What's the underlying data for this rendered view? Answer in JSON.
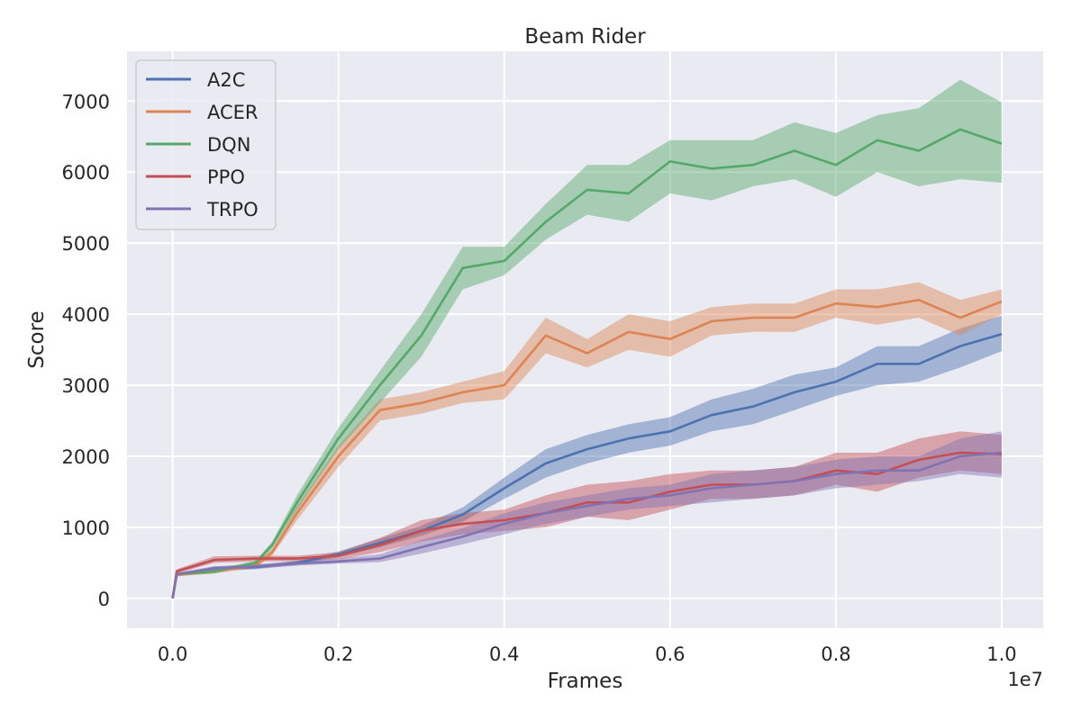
{
  "chart_data": {
    "type": "line",
    "title": "Beam Rider",
    "xlabel": "Frames",
    "ylabel": "Score",
    "x_offset_label": "1e7",
    "xlim": [
      -0.055,
      1.05
    ],
    "ylim": [
      -420,
      7700
    ],
    "xticks": [
      0.0,
      0.2,
      0.4,
      0.6,
      0.8,
      1.0
    ],
    "xtick_labels": [
      "0.0",
      "0.2",
      "0.4",
      "0.6",
      "0.8",
      "1.0"
    ],
    "yticks": [
      0,
      1000,
      2000,
      3000,
      4000,
      5000,
      6000,
      7000
    ],
    "ytick_labels": [
      "0",
      "1000",
      "2000",
      "3000",
      "4000",
      "5000",
      "6000",
      "7000"
    ],
    "grid": true,
    "legend_position": "top-left",
    "background": "#eaeaf2",
    "series": [
      {
        "name": "A2C",
        "color": "#4c72b0",
        "x": [
          0,
          0.005,
          0.05,
          0.1,
          0.15,
          0.2,
          0.25,
          0.3,
          0.35,
          0.4,
          0.45,
          0.5,
          0.55,
          0.6,
          0.65,
          0.7,
          0.75,
          0.8,
          0.85,
          0.9,
          0.95,
          1.0
        ],
        "y": [
          0,
          330,
          420,
          440,
          500,
          620,
          780,
          950,
          1180,
          1550,
          1900,
          2100,
          2250,
          2350,
          2580,
          2700,
          2900,
          3050,
          3300,
          3300,
          3550,
          3720
        ],
        "lower": [
          0,
          310,
          390,
          410,
          470,
          580,
          720,
          880,
          1080,
          1400,
          1700,
          1900,
          2050,
          2150,
          2350,
          2450,
          2650,
          2850,
          3000,
          3050,
          3250,
          3480
        ],
        "upper": [
          0,
          350,
          450,
          470,
          530,
          660,
          840,
          1020,
          1280,
          1700,
          2100,
          2300,
          2450,
          2550,
          2800,
          2950,
          3150,
          3250,
          3550,
          3550,
          3800,
          3980
        ]
      },
      {
        "name": "ACER",
        "color": "#dd8452",
        "x": [
          0,
          0.005,
          0.05,
          0.1,
          0.12,
          0.15,
          0.2,
          0.25,
          0.3,
          0.35,
          0.4,
          0.45,
          0.5,
          0.55,
          0.6,
          0.65,
          0.7,
          0.75,
          0.8,
          0.85,
          0.9,
          0.95,
          1.0
        ],
        "y": [
          0,
          330,
          380,
          460,
          650,
          1200,
          2000,
          2650,
          2750,
          2900,
          3000,
          3700,
          3450,
          3750,
          3650,
          3900,
          3950,
          3950,
          4150,
          4100,
          4200,
          3950,
          4180
        ],
        "lower": [
          0,
          310,
          350,
          430,
          600,
          1100,
          1850,
          2500,
          2600,
          2750,
          2800,
          3450,
          3250,
          3500,
          3400,
          3700,
          3750,
          3750,
          3950,
          3850,
          3950,
          3700,
          4000
        ],
        "upper": [
          0,
          350,
          410,
          490,
          700,
          1300,
          2150,
          2800,
          2900,
          3050,
          3200,
          3950,
          3650,
          4000,
          3900,
          4100,
          4150,
          4150,
          4350,
          4350,
          4450,
          4200,
          4350
        ]
      },
      {
        "name": "DQN",
        "color": "#55a868",
        "x": [
          0,
          0.005,
          0.05,
          0.1,
          0.12,
          0.15,
          0.2,
          0.25,
          0.3,
          0.35,
          0.4,
          0.45,
          0.5,
          0.55,
          0.6,
          0.65,
          0.7,
          0.75,
          0.8,
          0.85,
          0.9,
          0.95,
          1.0
        ],
        "y": [
          0,
          340,
          380,
          500,
          750,
          1350,
          2250,
          3000,
          3700,
          4650,
          4750,
          5300,
          5750,
          5700,
          6150,
          6050,
          6100,
          6300,
          6100,
          6450,
          6300,
          6600,
          6400
        ],
        "lower": [
          0,
          320,
          350,
          470,
          700,
          1250,
          2100,
          2750,
          3400,
          4350,
          4550,
          5050,
          5400,
          5300,
          5700,
          5600,
          5800,
          5900,
          5650,
          6000,
          5800,
          5900,
          5850
        ],
        "upper": [
          0,
          360,
          410,
          530,
          800,
          1450,
          2400,
          3200,
          4000,
          4950,
          4950,
          5550,
          6100,
          6100,
          6450,
          6450,
          6450,
          6700,
          6550,
          6800,
          6900,
          7300,
          6980
        ]
      },
      {
        "name": "PPO",
        "color": "#c44e52",
        "x": [
          0,
          0.005,
          0.05,
          0.1,
          0.15,
          0.2,
          0.25,
          0.3,
          0.35,
          0.4,
          0.45,
          0.5,
          0.55,
          0.6,
          0.65,
          0.7,
          0.75,
          0.8,
          0.85,
          0.9,
          0.95,
          1.0
        ],
        "y": [
          0,
          380,
          540,
          560,
          560,
          600,
          750,
          950,
          1050,
          1100,
          1200,
          1350,
          1350,
          1500,
          1600,
          1600,
          1650,
          1800,
          1750,
          1950,
          2050,
          2030
        ],
        "lower": [
          0,
          350,
          500,
          520,
          520,
          550,
          650,
          800,
          900,
          950,
          1000,
          1150,
          1100,
          1250,
          1400,
          1400,
          1450,
          1600,
          1500,
          1700,
          1800,
          1750
        ],
        "upper": [
          0,
          410,
          590,
          600,
          600,
          650,
          850,
          1100,
          1200,
          1250,
          1450,
          1600,
          1650,
          1750,
          1800,
          1800,
          1850,
          2050,
          2050,
          2250,
          2350,
          2300
        ]
      },
      {
        "name": "TRPO",
        "color": "#8172b3",
        "x": [
          0,
          0.005,
          0.05,
          0.1,
          0.15,
          0.2,
          0.25,
          0.3,
          0.35,
          0.4,
          0.45,
          0.5,
          0.55,
          0.6,
          0.65,
          0.7,
          0.75,
          0.8,
          0.85,
          0.9,
          0.95,
          1.0
        ],
        "y": [
          0,
          340,
          420,
          450,
          490,
          520,
          560,
          720,
          870,
          1050,
          1200,
          1300,
          1400,
          1450,
          1550,
          1600,
          1650,
          1750,
          1800,
          1800,
          2000,
          2050
        ],
        "lower": [
          0,
          320,
          390,
          420,
          460,
          490,
          510,
          630,
          760,
          900,
          1050,
          1150,
          1250,
          1300,
          1350,
          1400,
          1450,
          1550,
          1600,
          1650,
          1750,
          1700
        ],
        "upper": [
          0,
          360,
          450,
          480,
          520,
          560,
          620,
          820,
          990,
          1200,
          1350,
          1450,
          1550,
          1600,
          1750,
          1800,
          1850,
          1950,
          2000,
          2000,
          2250,
          2350
        ]
      }
    ]
  }
}
